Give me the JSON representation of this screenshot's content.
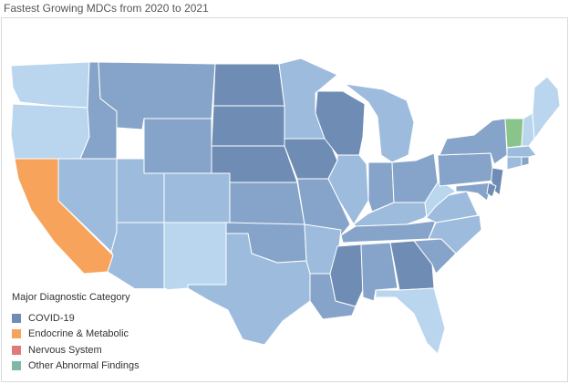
{
  "title": "Fastest Growing MDCs from 2020 to 2021",
  "legend": {
    "title": "Major Diagnostic Category",
    "items": [
      {
        "label": "COVID-19",
        "color": "#6f8db4"
      },
      {
        "label": "Endocrine & Metabolic",
        "color": "#f7a35c"
      },
      {
        "label": "Nervous System",
        "color": "#e07a7a"
      },
      {
        "label": "Other Abnormal Findings",
        "color": "#7fb8a8"
      }
    ]
  },
  "colors": {
    "c1": "#6f8db4",
    "c2": "#86a4c9",
    "c3": "#9dbcdd",
    "c4": "#b9d6ee",
    "endocrine": "#f7a35c",
    "other": "#8ac48a"
  }
}
